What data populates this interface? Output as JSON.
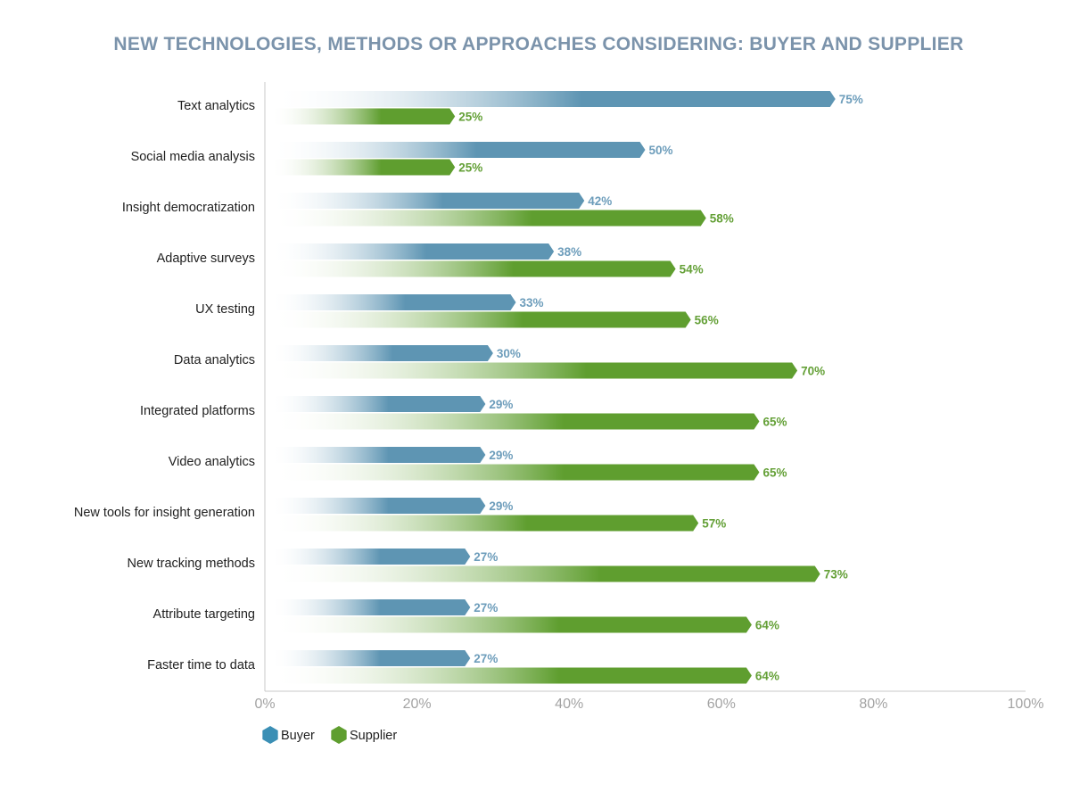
{
  "chart_data": {
    "type": "bar",
    "orientation": "horizontal",
    "title": "NEW TECHNOLOGIES, METHODS OR APPROACHES CONSIDERING: BUYER AND SUPPLIER",
    "categories": [
      "Text analytics",
      "Social media analysis",
      "Insight democratization",
      "Adaptive surveys",
      "UX testing",
      "Data analytics",
      "Integrated platforms",
      "Video analytics",
      "New tools for insight generation",
      "New tracking methods",
      "Attribute targeting",
      "Faster time to data"
    ],
    "series": [
      {
        "name": "Buyer",
        "color": "#5e95b3",
        "values": [
          75,
          50,
          42,
          38,
          33,
          30,
          29,
          29,
          29,
          27,
          27,
          27
        ],
        "labels": [
          "75%",
          "50%",
          "42%",
          "38%",
          "33%",
          "30%",
          "29%",
          "29%",
          "29%",
          "27%",
          "27%",
          "27%"
        ]
      },
      {
        "name": "Supplier",
        "color": "#5f9e2f",
        "values": [
          25,
          25,
          58,
          54,
          56,
          70,
          65,
          65,
          57,
          73,
          64,
          64
        ],
        "labels": [
          "25%",
          "25%",
          "58%",
          "54%",
          "56%",
          "70%",
          "65%",
          "65%",
          "57%",
          "73%",
          "64%",
          "64%"
        ]
      }
    ],
    "xlim": [
      0,
      100
    ],
    "xticks": [
      0,
      20,
      40,
      60,
      80,
      100
    ],
    "xtick_labels": [
      "0%",
      "20%",
      "40%",
      "60%",
      "80%",
      "100%"
    ],
    "xlabel": "",
    "ylabel": "",
    "grid": false,
    "legend": {
      "position": "bottom-left",
      "items": [
        {
          "label": "Buyer",
          "color": "#3b8fb5"
        },
        {
          "label": "Supplier",
          "color": "#5f9e2f"
        }
      ]
    }
  }
}
